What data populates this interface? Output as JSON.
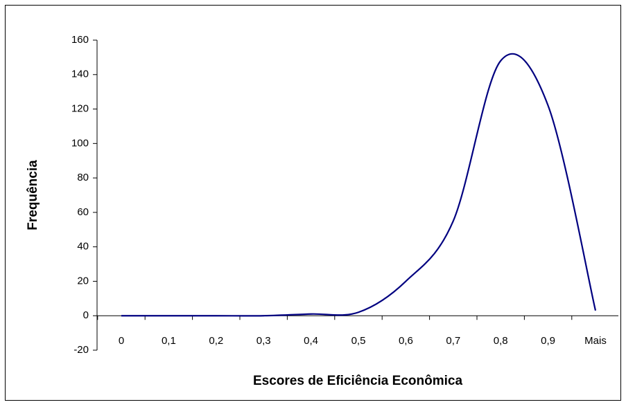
{
  "chart_data": {
    "type": "line",
    "x_label": "Escores de Eficiência Econômica",
    "y_label": "Frequência",
    "categories": [
      "0",
      "0,1",
      "0,2",
      "0,3",
      "0,4",
      "0,5",
      "0,6",
      "0,7",
      "0,8",
      "0,9",
      "Mais"
    ],
    "series": [
      {
        "color": "#000080",
        "values": [
          0,
          0,
          0,
          0,
          1,
          2,
          20,
          55,
          148,
          122,
          3
        ]
      }
    ],
    "ylim": [
      -20,
      160
    ],
    "yticks": [
      -20,
      0,
      20,
      40,
      60,
      80,
      100,
      120,
      140,
      160
    ]
  }
}
